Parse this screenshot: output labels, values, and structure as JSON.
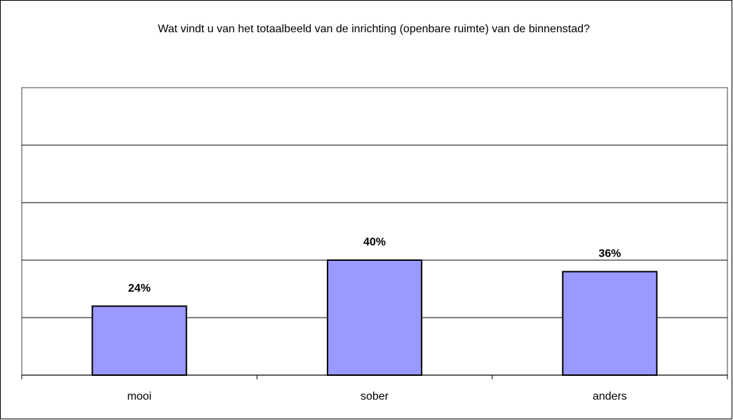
{
  "chart_data": {
    "type": "bar",
    "title": "Wat vindt u van het totaalbeeld van de inrichting (openbare ruimte) van de binnenstad?",
    "categories": [
      "mooi",
      "sober",
      "anders"
    ],
    "values": [
      24,
      40,
      36
    ],
    "value_labels": [
      "24%",
      "40%",
      "36%"
    ],
    "color": "#9999ff",
    "ylim": [
      0,
      100
    ],
    "yticks": [
      0,
      20,
      40,
      60,
      80,
      100
    ],
    "grid": true
  }
}
